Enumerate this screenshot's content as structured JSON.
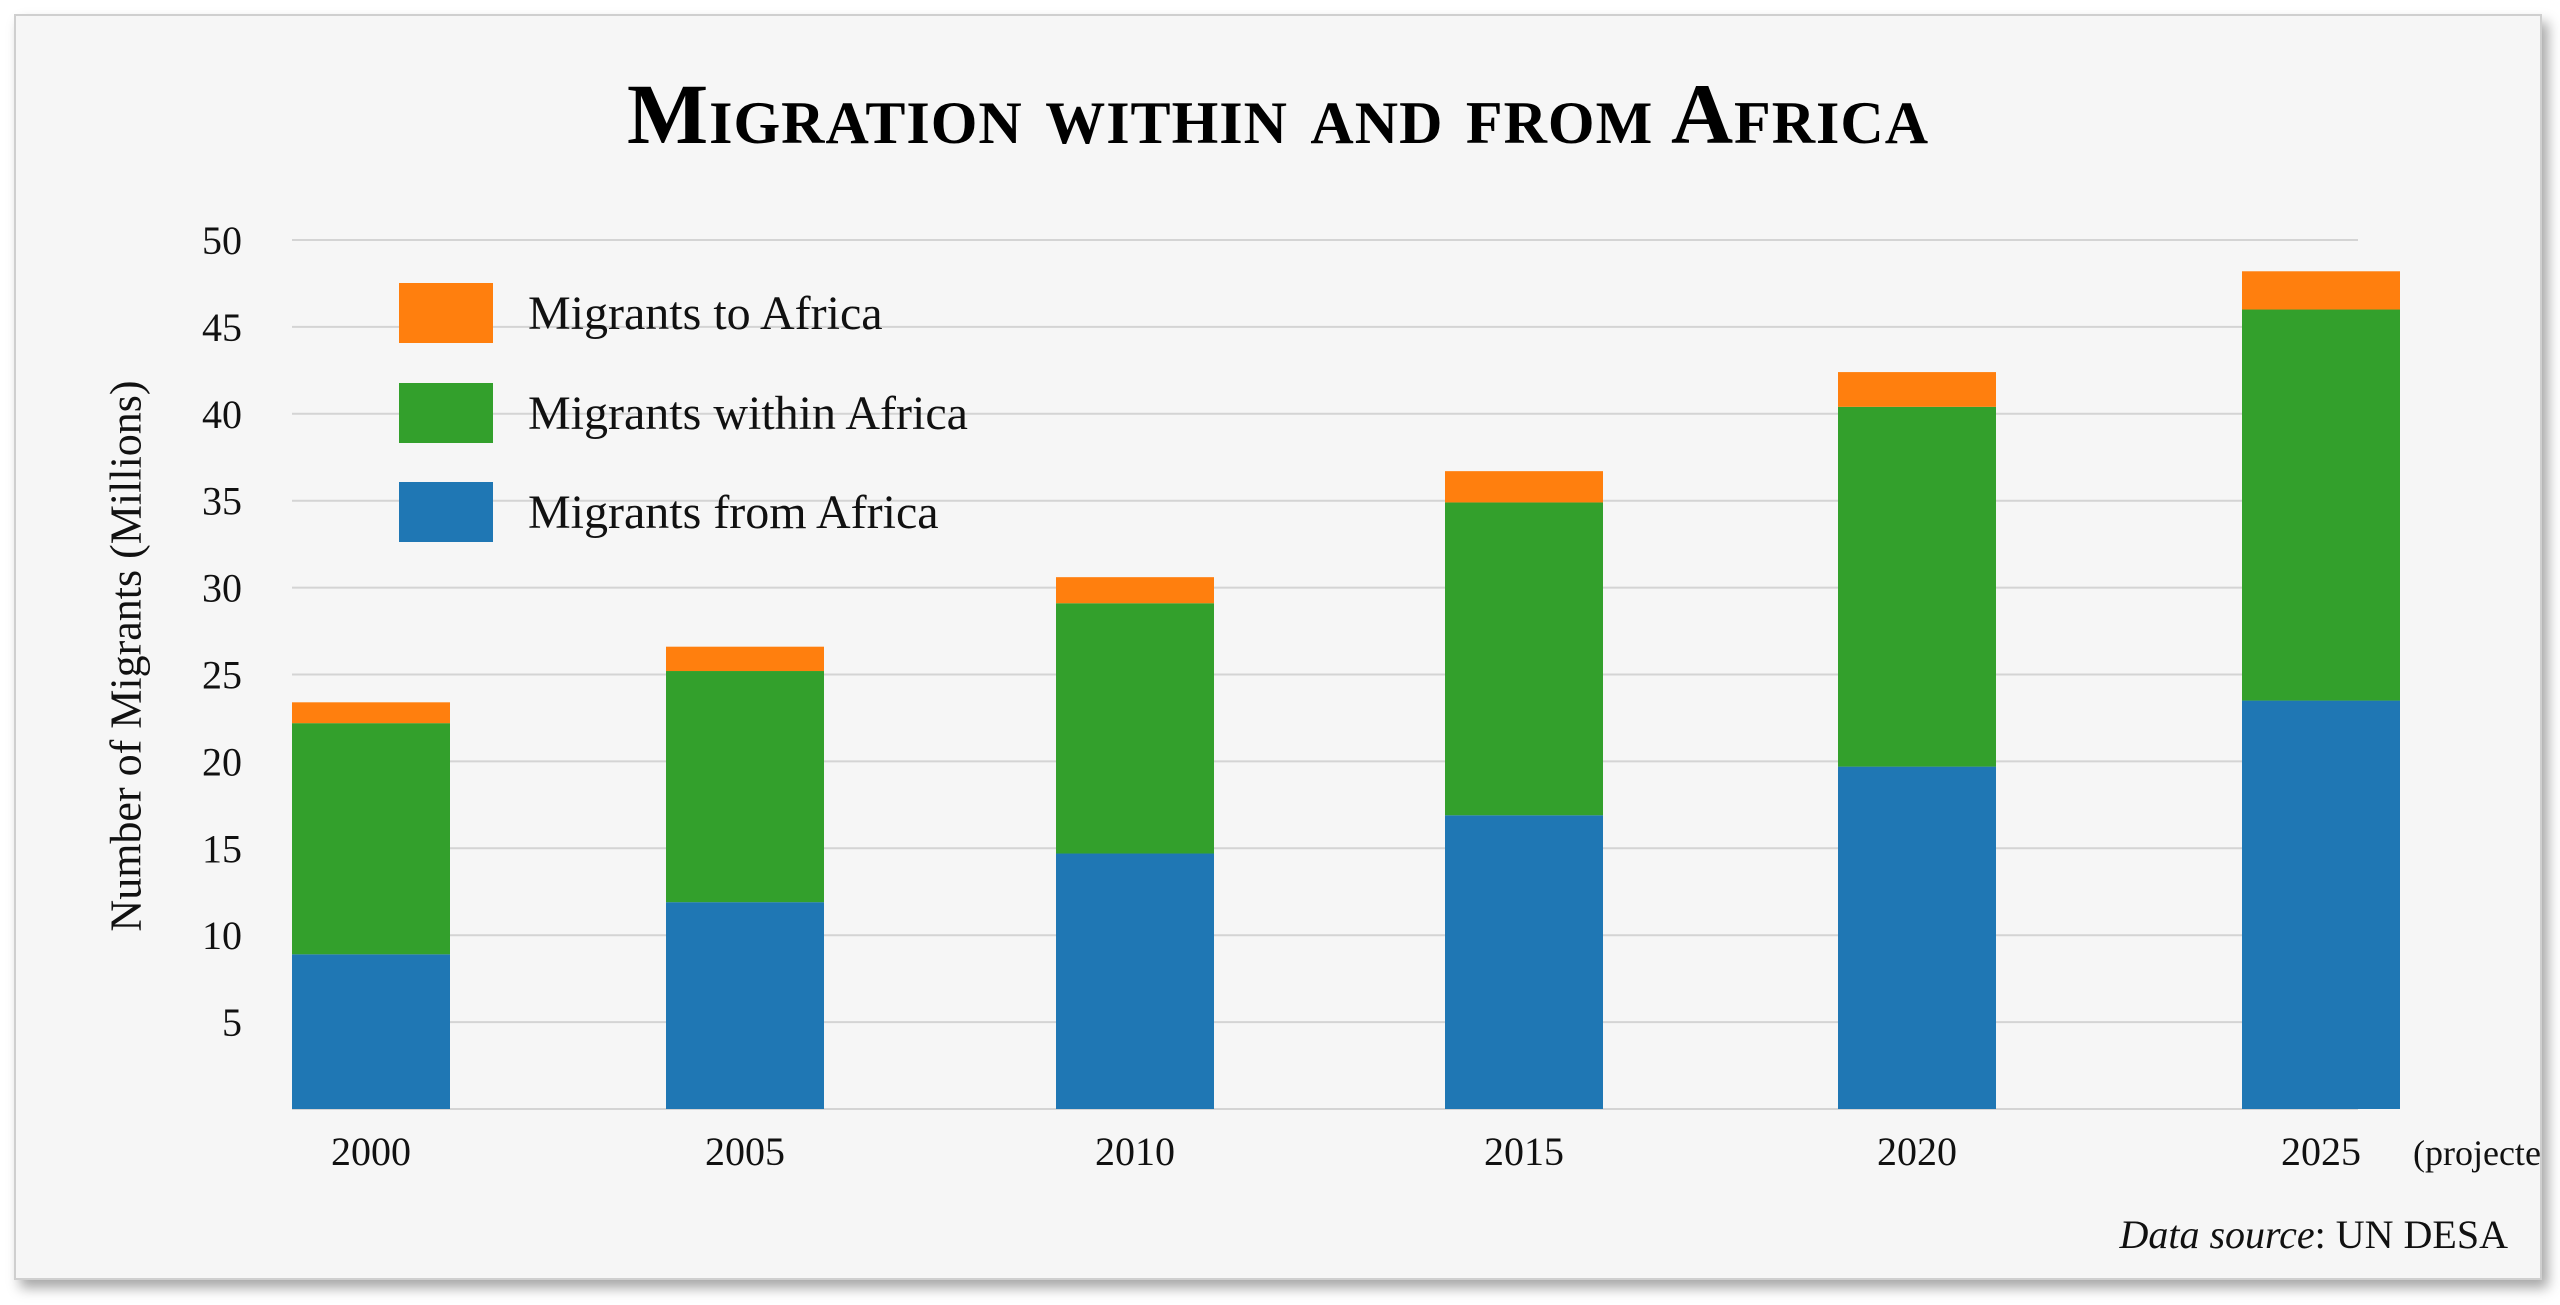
{
  "chart_data": {
    "type": "bar",
    "stacked": true,
    "title": "Migration within and from Africa",
    "ylabel": "Number of Migrants (Millions)",
    "xlabel": "",
    "categories": [
      "2000",
      "2005",
      "2010",
      "2015",
      "2020",
      "2025"
    ],
    "category_notes": [
      "",
      "",
      "",
      "",
      "",
      "(projected)"
    ],
    "ylim": [
      0,
      50
    ],
    "yticks": [
      5,
      10,
      15,
      20,
      25,
      30,
      35,
      40,
      45,
      50
    ],
    "grid": "horizontal",
    "legend_position": "top-left",
    "series": [
      {
        "name": "Migrants from Africa",
        "color": "#1f77b4",
        "values": [
          8.9,
          11.9,
          14.7,
          16.9,
          19.7,
          23.5
        ]
      },
      {
        "name": "Migrants within Africa",
        "color": "#33a02c",
        "values": [
          13.3,
          13.3,
          14.4,
          18.0,
          20.7,
          22.5
        ]
      },
      {
        "name": "Migrants to Africa",
        "color": "#ff7f0e",
        "values": [
          1.2,
          1.4,
          1.5,
          1.8,
          2.0,
          2.2
        ]
      }
    ],
    "legend_order": [
      "Migrants to Africa",
      "Migrants within Africa",
      "Migrants from Africa"
    ]
  },
  "source": {
    "label": "Data source",
    "value": "UN DESA"
  }
}
